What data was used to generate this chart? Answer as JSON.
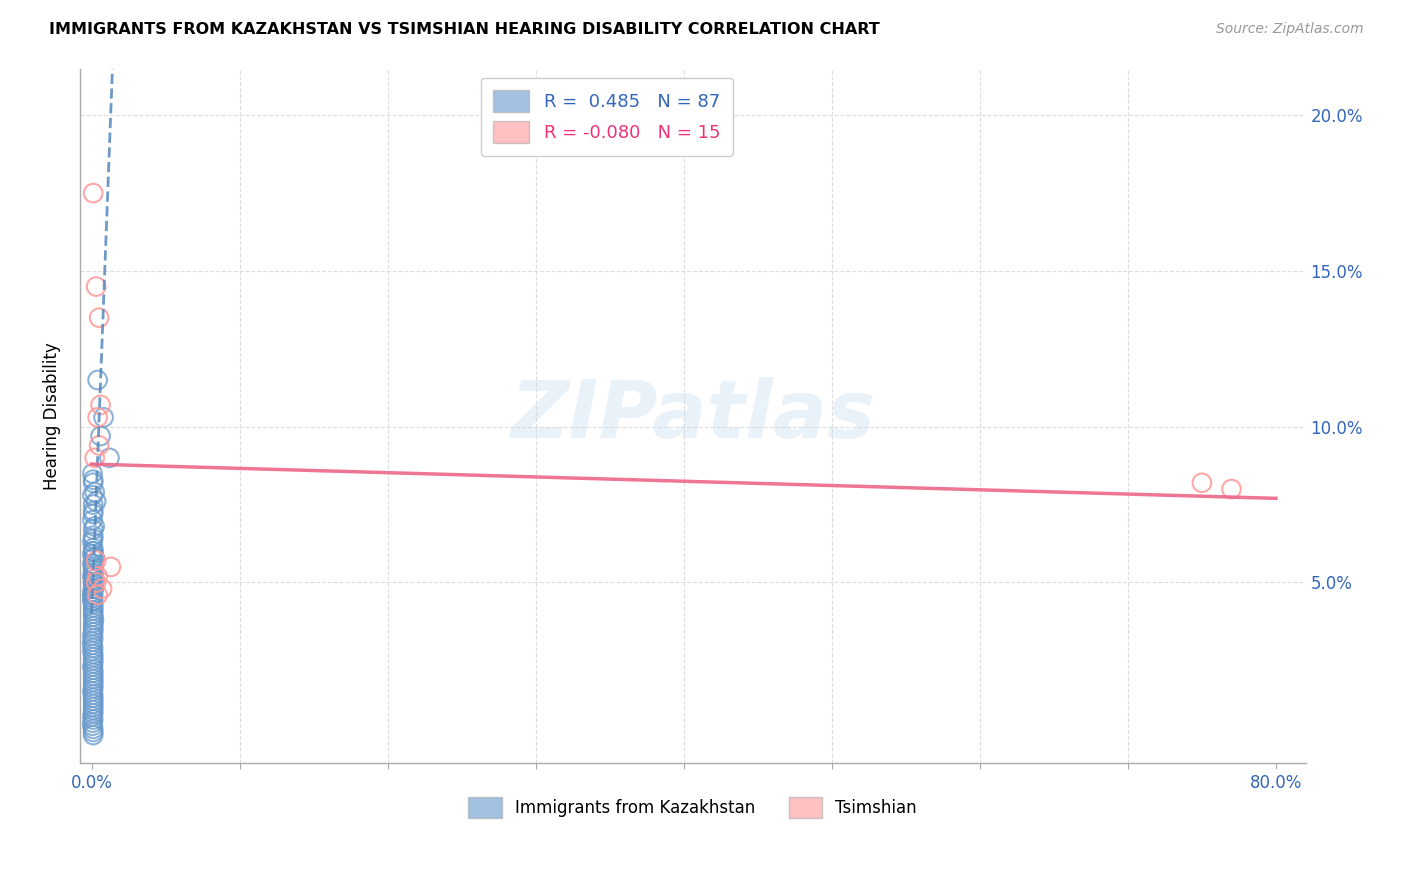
{
  "title": "IMMIGRANTS FROM KAZAKHSTAN VS TSIMSHIAN HEARING DISABILITY CORRELATION CHART",
  "source": "Source: ZipAtlas.com",
  "ylabel": "Hearing Disability",
  "xlim_min": -0.008,
  "xlim_max": 0.82,
  "ylim_min": -0.008,
  "ylim_max": 0.215,
  "xtick_positions": [
    0.0,
    0.1,
    0.2,
    0.3,
    0.4,
    0.5,
    0.6,
    0.7,
    0.8
  ],
  "xticklabels": [
    "0.0%",
    "",
    "",
    "",
    "",
    "",
    "",
    "",
    "80.0%"
  ],
  "ytick_positions": [
    0.0,
    0.05,
    0.1,
    0.15,
    0.2
  ],
  "yticklabels_right": [
    "",
    "5.0%",
    "10.0%",
    "15.0%",
    "20.0%"
  ],
  "blue_R": 0.485,
  "blue_N": 87,
  "pink_R": -0.08,
  "pink_N": 15,
  "blue_scatter_color": "#6699CC",
  "pink_scatter_color": "#FF9999",
  "blue_line_color": "#5588BB",
  "pink_line_color": "#EE6688",
  "grid_color": "#DDDDDD",
  "blue_points_x": [
    0.004,
    0.008,
    0.006,
    0.012,
    0.0005,
    0.001,
    0.002,
    0.003,
    0.001,
    0.002,
    0.001,
    0.0005,
    0.001,
    0.002,
    0.001,
    0.0005,
    0.001,
    0.0015,
    0.001,
    0.0005,
    0.001,
    0.0005,
    0.001,
    0.001,
    0.0005,
    0.001,
    0.001,
    0.001,
    0.0005,
    0.0005,
    0.001,
    0.001,
    0.001,
    0.0005,
    0.0005,
    0.001,
    0.001,
    0.001,
    0.001,
    0.001,
    0.0005,
    0.0005,
    0.001,
    0.001,
    0.001,
    0.0005,
    0.001,
    0.001,
    0.001,
    0.0005,
    0.001,
    0.001,
    0.001,
    0.0005,
    0.0005,
    0.001,
    0.001,
    0.001,
    0.001,
    0.0005,
    0.001,
    0.001,
    0.001,
    0.001,
    0.001,
    0.001,
    0.001,
    0.001,
    0.001,
    0.001,
    0.0005,
    0.0005,
    0.001,
    0.001,
    0.001,
    0.0015,
    0.001,
    0.001,
    0.001,
    0.0005,
    0.001,
    0.001,
    0.001,
    0.001,
    0.001,
    0.001,
    0.001
  ],
  "blue_points_y": [
    0.115,
    0.103,
    0.097,
    0.09,
    0.085,
    0.082,
    0.079,
    0.076,
    0.072,
    0.068,
    0.065,
    0.063,
    0.06,
    0.058,
    0.055,
    0.052,
    0.05,
    0.048,
    0.046,
    0.044,
    0.083,
    0.078,
    0.075,
    0.073,
    0.07,
    0.067,
    0.064,
    0.061,
    0.059,
    0.056,
    0.053,
    0.051,
    0.049,
    0.047,
    0.045,
    0.043,
    0.041,
    0.039,
    0.037,
    0.035,
    0.033,
    0.031,
    0.029,
    0.027,
    0.025,
    0.023,
    0.021,
    0.019,
    0.017,
    0.015,
    0.013,
    0.011,
    0.009,
    0.007,
    0.005,
    0.003,
    0.001,
    0.008,
    0.006,
    0.004,
    0.002,
    0.01,
    0.012,
    0.014,
    0.016,
    0.018,
    0.02,
    0.022,
    0.024,
    0.026,
    0.028,
    0.03,
    0.032,
    0.034,
    0.036,
    0.038,
    0.04,
    0.042,
    0.044,
    0.046,
    0.048,
    0.05,
    0.052,
    0.054,
    0.056,
    0.058,
    0.06
  ],
  "pink_points_x": [
    0.001,
    0.003,
    0.005,
    0.006,
    0.004,
    0.013,
    0.007,
    0.75,
    0.77,
    0.003,
    0.004,
    0.005,
    0.002,
    0.003,
    0.004
  ],
  "pink_points_y": [
    0.175,
    0.145,
    0.135,
    0.107,
    0.103,
    0.055,
    0.048,
    0.082,
    0.08,
    0.05,
    0.046,
    0.094,
    0.09,
    0.057,
    0.052
  ],
  "blue_trend_x0": 0.0,
  "blue_trend_y0": 0.04,
  "blue_trend_x1": 0.014,
  "blue_trend_y1": 0.215,
  "pink_trend_x0": 0.0,
  "pink_trend_y0": 0.088,
  "pink_trend_x1": 0.8,
  "pink_trend_y1": 0.077,
  "watermark_text": "ZIPatlas",
  "legend_label_blue": "R =  0.485   N = 87",
  "legend_label_pink": "R = -0.080   N = 15",
  "bottom_legend_blue": "Immigrants from Kazakhstan",
  "bottom_legend_pink": "Tsimshian"
}
